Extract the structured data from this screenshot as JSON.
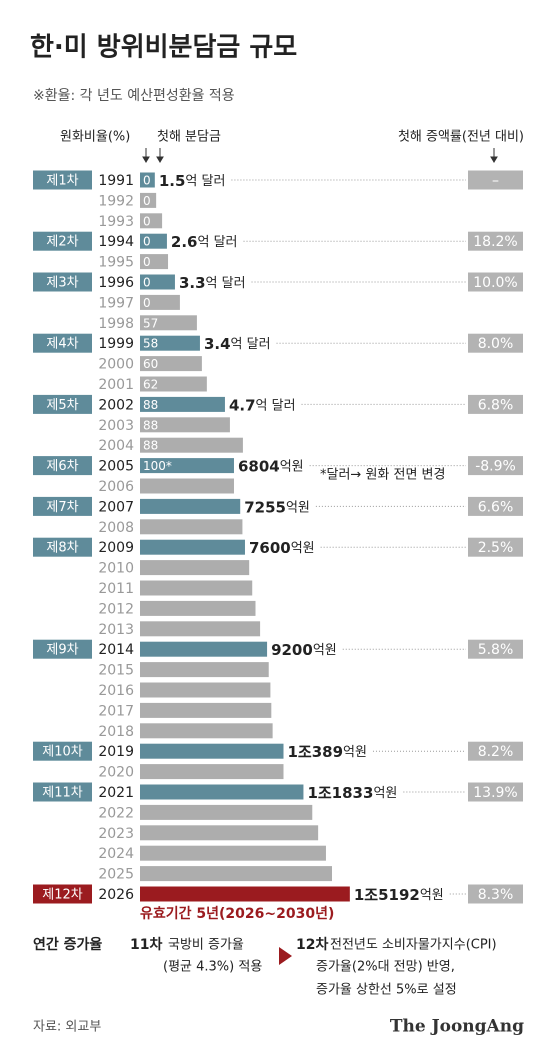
{
  "chart_data": {
    "type": "bar",
    "title": "한·미 방위비분담금 규모",
    "subtitle": "※환율: 각 년도 예산편성환율 적용",
    "column_headers": {
      "ratio": "원화비율(%)",
      "amount": "첫해 분담금",
      "rate": "첫해 증액률(전년 대비)"
    },
    "categories": [
      "1991",
      "1992",
      "1993",
      "1994",
      "1995",
      "1996",
      "1997",
      "1998",
      "1999",
      "2000",
      "2001",
      "2002",
      "2003",
      "2004",
      "2005",
      "2006",
      "2007",
      "2008",
      "2009",
      "2010",
      "2011",
      "2012",
      "2013",
      "2014",
      "2015",
      "2016",
      "2017",
      "2018",
      "2019",
      "2020",
      "2021",
      "2022",
      "2023",
      "2024",
      "2025",
      "2026"
    ],
    "values": [
      1073,
      1169,
      1600,
      1950,
      2030,
      2530,
      2890,
      4120,
      4340,
      4480,
      4840,
      6150,
      6510,
      7450,
      6804,
      6804,
      7255,
      7415,
      7600,
      7904,
      8125,
      8361,
      8695,
      9200,
      9320,
      9441,
      9507,
      9602,
      10389,
      10389,
      11833,
      12472,
      12896,
      13463,
      13900,
      15192
    ],
    "xlim": [
      0,
      16000
    ],
    "won_ratio": [
      0,
      0,
      0,
      0,
      0,
      0,
      0,
      57,
      58,
      60,
      62,
      88,
      88,
      88,
      "100*",
      null,
      null,
      null,
      null,
      null,
      null,
      null,
      null,
      null,
      null,
      null,
      null,
      null,
      null,
      null,
      null,
      null,
      null,
      null,
      null,
      null
    ],
    "round_labels": [
      "제1차",
      null,
      null,
      "제2차",
      null,
      "제3차",
      null,
      null,
      "제4차",
      null,
      null,
      "제5차",
      null,
      null,
      "제6차",
      null,
      "제7차",
      null,
      "제8차",
      null,
      null,
      null,
      null,
      "제9차",
      null,
      null,
      null,
      null,
      "제10차",
      null,
      "제11차",
      null,
      null,
      null,
      null,
      "제12차"
    ],
    "amounts": [
      "1.5",
      null,
      null,
      "2.6",
      null,
      "3.3",
      null,
      null,
      "3.4",
      null,
      null,
      "4.7",
      null,
      null,
      "6804",
      null,
      "7255",
      null,
      "7600",
      null,
      null,
      null,
      null,
      "9200",
      null,
      null,
      null,
      null,
      "1조389",
      null,
      "1조1833",
      null,
      null,
      null,
      null,
      "1조5192"
    ],
    "amount_units": [
      "억 달러",
      null,
      null,
      "억 달러",
      null,
      "억 달러",
      null,
      null,
      "억 달러",
      null,
      null,
      "억 달러",
      null,
      null,
      "억원",
      null,
      "억원",
      null,
      "억원",
      null,
      null,
      null,
      null,
      "억원",
      null,
      null,
      null,
      null,
      "억원",
      null,
      "억원",
      null,
      null,
      null,
      null,
      "억원"
    ],
    "rates": [
      "–",
      null,
      null,
      "18.2%",
      null,
      "10.0%",
      null,
      null,
      "8.0%",
      null,
      null,
      "6.8%",
      null,
      null,
      "-8.9%",
      null,
      "6.6%",
      null,
      "2.5%",
      null,
      null,
      null,
      null,
      "5.8%",
      null,
      null,
      null,
      null,
      "8.2%",
      null,
      "13.9%",
      null,
      null,
      null,
      null,
      "8.3%"
    ],
    "colors": {
      "round": "#5f8b9a",
      "other": "#adadad",
      "highlight": "#9b1b1f",
      "rate_box": "#b3b3b3"
    },
    "note": "*달러→ 원화 전면 변경",
    "validity": "유효기간 5년(2026~2030년)",
    "footer": {
      "label": "연간 증가율",
      "items": [
        {
          "round": "11차",
          "lines": [
            "국방비 증가율",
            "(평균 4.3%) 적용"
          ]
        },
        {
          "round": "12차",
          "lines": [
            "전전년도 소비자물가지수(CPI)",
            "증가율(2%대 전망) 반영,",
            "증가율 상한선 5%로 설정"
          ]
        }
      ]
    },
    "source": "자료: 외교부",
    "brand": "The JoongAng"
  }
}
